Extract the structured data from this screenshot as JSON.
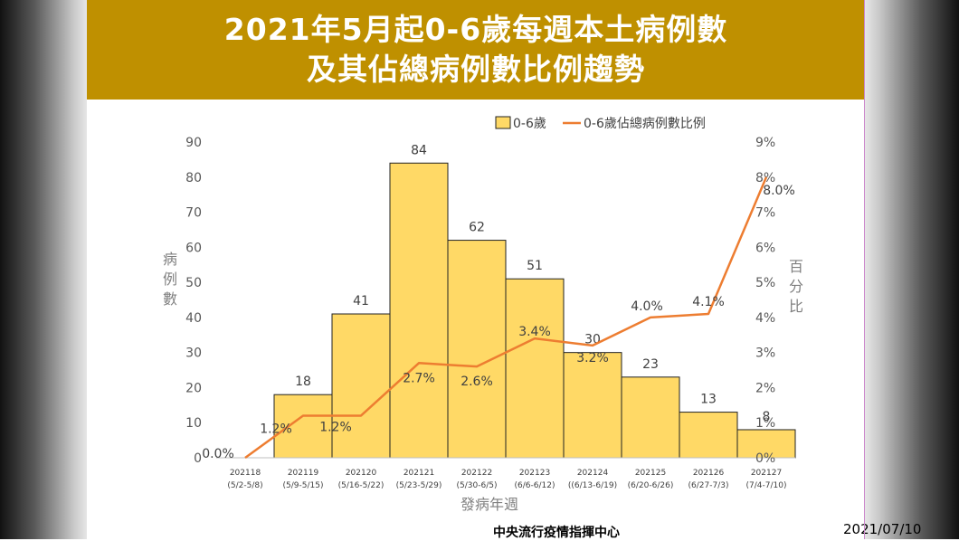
{
  "title": {
    "line1": "2021年5月起0-6歲每週本土病例數",
    "line2": "及其佔總病例數比例趨勢"
  },
  "chart_data": {
    "type": "bar",
    "categories": [
      {
        "week": "202118",
        "range": "(5/2-5/8)"
      },
      {
        "week": "202119",
        "range": "(5/9-5/15)"
      },
      {
        "week": "202120",
        "range": "(5/16-5/22)"
      },
      {
        "week": "202121",
        "range": "(5/23-5/29)"
      },
      {
        "week": "202122",
        "range": "(5/30-6/5)"
      },
      {
        "week": "202123",
        "range": "(6/6-6/12)"
      },
      {
        "week": "202124",
        "range": "((6/13-6/19)"
      },
      {
        "week": "202125",
        "range": "(6/20-6/26)"
      },
      {
        "week": "202126",
        "range": "(6/27-7/3)"
      },
      {
        "week": "202127",
        "range": "(7/4-7/10)"
      }
    ],
    "series": [
      {
        "name": "0-6歲",
        "kind": "bar",
        "axis": "left",
        "color": "#ffd966",
        "values": [
          0,
          18,
          41,
          84,
          62,
          51,
          30,
          23,
          13,
          8
        ],
        "labels": [
          "",
          "18",
          "41",
          "84",
          "62",
          "51",
          "30",
          "23",
          "13",
          "8"
        ]
      },
      {
        "name": "0-6歲佔總病例數比例",
        "kind": "line",
        "axis": "right",
        "color": "#ed7d31",
        "values": [
          0.0,
          1.2,
          1.2,
          2.7,
          2.6,
          3.4,
          3.2,
          4.0,
          4.1,
          8.0
        ],
        "labels": [
          "0.0%",
          "1.2%",
          "1.2%",
          "2.7%",
          "2.6%",
          "3.4%",
          "3.2%",
          "4.0%",
          "4.1%",
          "8.0%"
        ]
      }
    ],
    "y_left": {
      "label": "病例數",
      "ylim": [
        0,
        90
      ],
      "ticks": [
        "0",
        "10",
        "20",
        "30",
        "40",
        "50",
        "60",
        "70",
        "80",
        "90"
      ]
    },
    "y_right": {
      "label": "百分比",
      "ylim": [
        0,
        9
      ],
      "ticks": [
        "0%",
        "1%",
        "2%",
        "3%",
        "4%",
        "5%",
        "6%",
        "7%",
        "8%",
        "9%"
      ]
    },
    "xlabel": "發病年週",
    "grid": false,
    "legend": "top"
  },
  "footer": {
    "source": "中央流行疫情指揮中心",
    "date": "2021/07/10"
  }
}
